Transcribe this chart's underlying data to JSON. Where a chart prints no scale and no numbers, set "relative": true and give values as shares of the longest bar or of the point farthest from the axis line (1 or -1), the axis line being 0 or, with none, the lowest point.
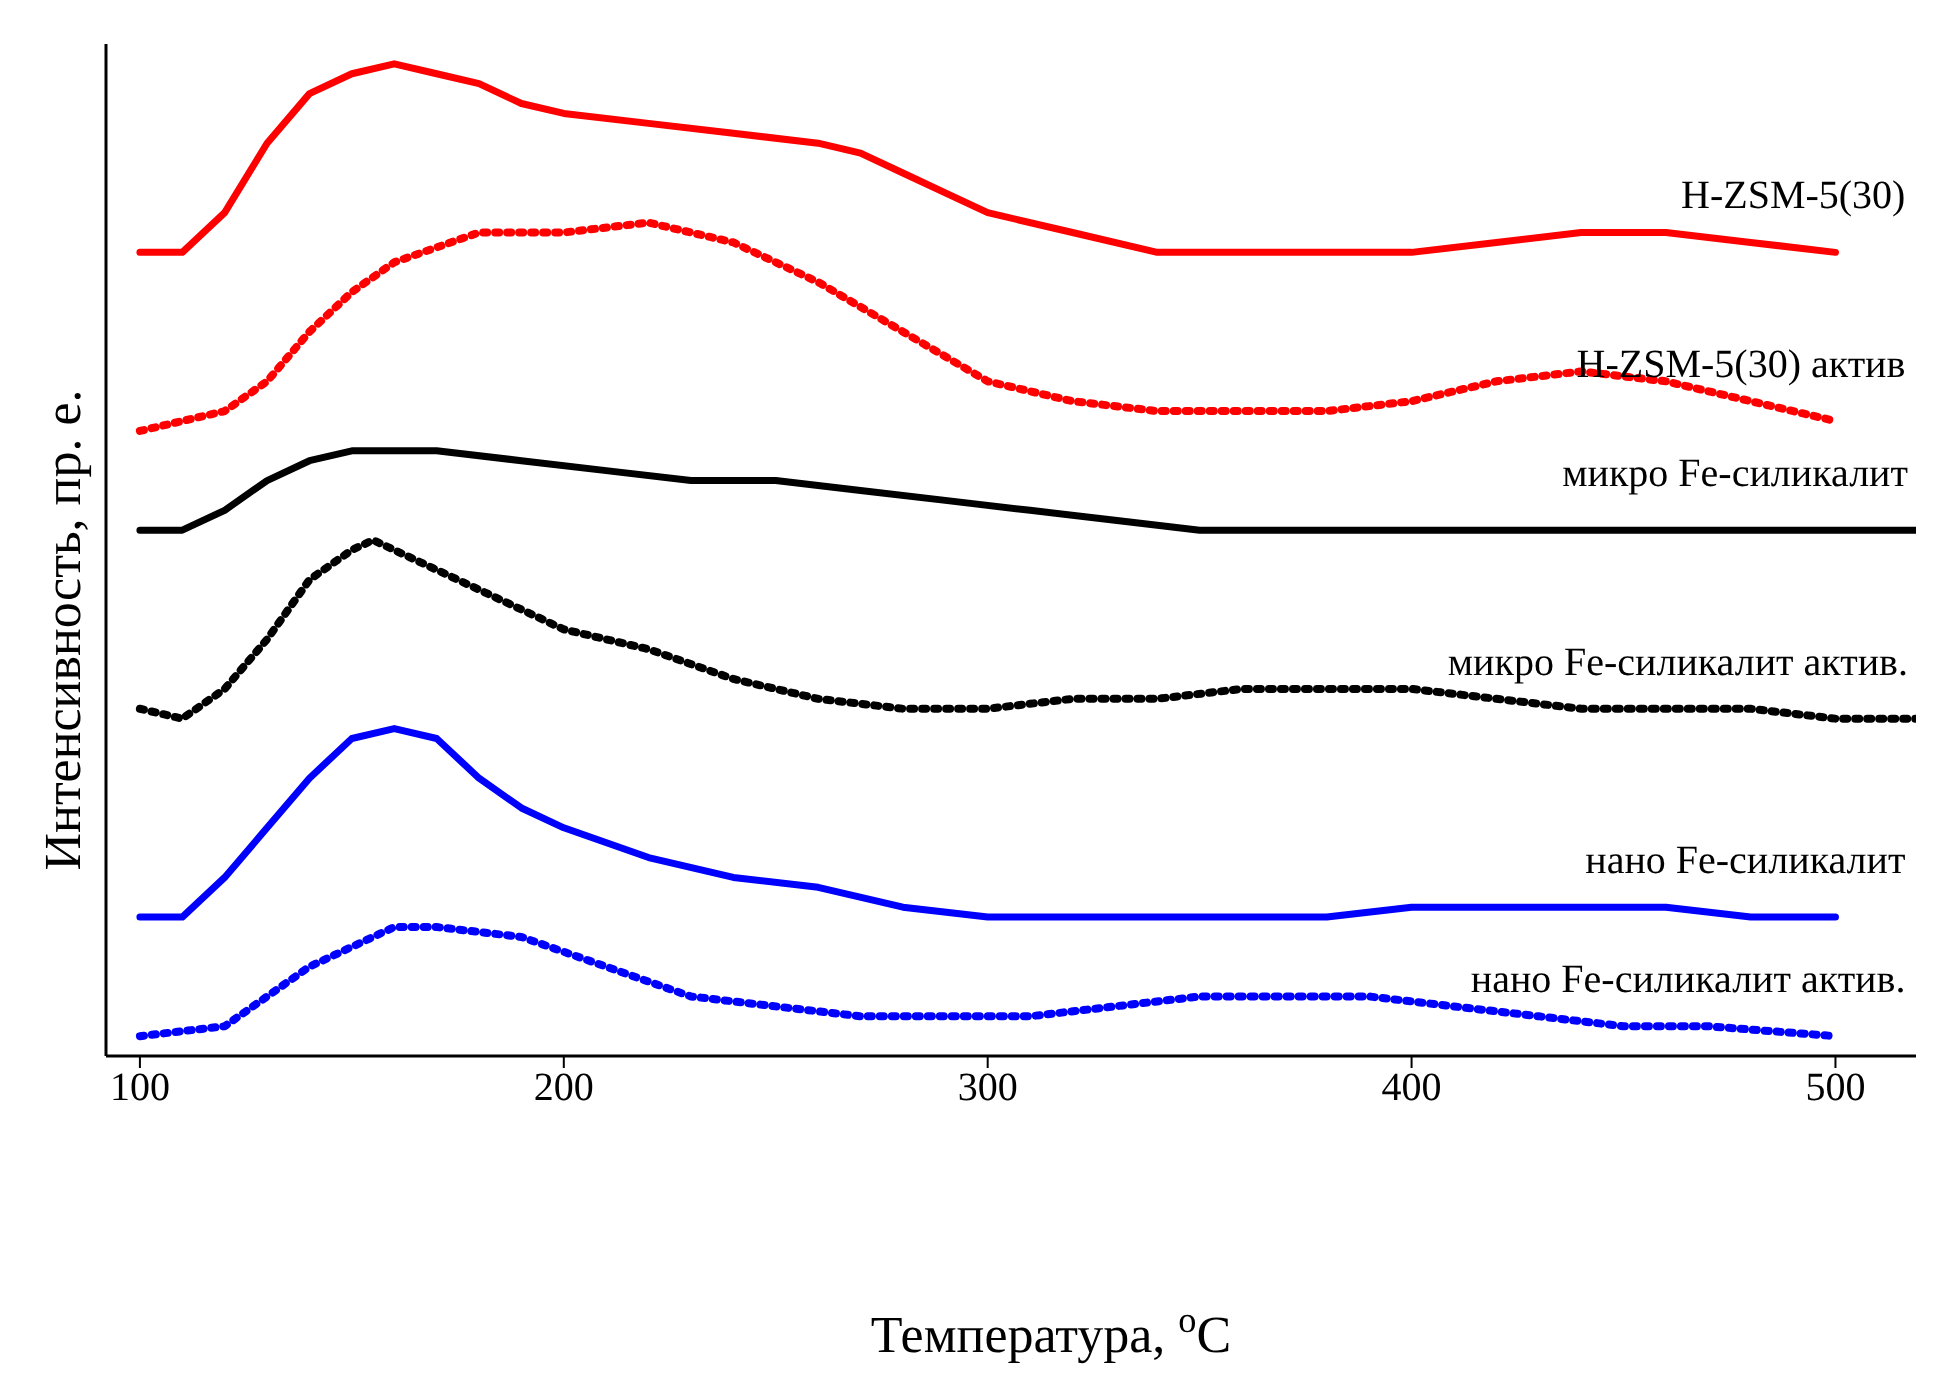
{
  "chart_data": {
    "type": "line",
    "relative": true,
    "xlabel": "Температура, $^{o}$C",
    "ylabel": "Интенсивность, пр. е.",
    "xlim": [
      92,
      519
    ],
    "xticks": [
      100,
      200,
      300,
      400,
      500
    ],
    "tick_labels": "x",
    "marker": "none",
    "series": [
      {
        "name": "H-ZSM-5(30)",
        "color": "#ff0000",
        "line_style": "solid",
        "x": [
          100,
          110,
          120,
          130,
          140,
          150,
          160,
          170,
          180,
          190,
          200,
          220,
          240,
          260,
          270,
          280,
          290,
          300,
          320,
          340,
          360,
          380,
          400,
          420,
          440,
          460,
          480,
          500
        ],
        "values": [
          0.81,
          0.81,
          0.85,
          0.92,
          0.97,
          0.99,
          1.0,
          0.99,
          0.98,
          0.96,
          0.95,
          0.94,
          0.93,
          0.92,
          0.91,
          0.89,
          0.87,
          0.85,
          0.83,
          0.81,
          0.81,
          0.81,
          0.81,
          0.82,
          0.83,
          0.83,
          0.82,
          0.81
        ]
      },
      {
        "name": "H-ZSM-5(30) актив",
        "color": "#ff0000",
        "line_style": "dotted",
        "x": [
          100,
          120,
          130,
          140,
          150,
          160,
          180,
          200,
          220,
          240,
          260,
          280,
          300,
          320,
          340,
          360,
          380,
          400,
          420,
          440,
          460,
          480,
          500
        ],
        "values": [
          0.63,
          0.65,
          0.68,
          0.73,
          0.77,
          0.8,
          0.83,
          0.83,
          0.84,
          0.82,
          0.78,
          0.73,
          0.68,
          0.66,
          0.65,
          0.65,
          0.65,
          0.66,
          0.68,
          0.69,
          0.68,
          0.66,
          0.64
        ]
      },
      {
        "name": "микро Fe-силикалит",
        "color": "#000000",
        "line_style": "solid",
        "x": [
          100,
          110,
          120,
          130,
          140,
          150,
          170,
          190,
          210,
          230,
          250,
          270,
          290,
          310,
          330,
          350,
          370,
          400,
          450,
          500,
          519
        ],
        "values": [
          0.53,
          0.53,
          0.55,
          0.58,
          0.6,
          0.61,
          0.61,
          0.6,
          0.59,
          0.58,
          0.58,
          0.57,
          0.56,
          0.55,
          0.54,
          0.53,
          0.53,
          0.53,
          0.53,
          0.53,
          0.53
        ]
      },
      {
        "name": "микро Fe-силикалит актив.",
        "color": "#000000",
        "line_style": "dotted",
        "x": [
          100,
          110,
          120,
          130,
          140,
          150,
          155,
          165,
          180,
          200,
          220,
          240,
          260,
          280,
          300,
          320,
          340,
          360,
          380,
          400,
          420,
          440,
          460,
          480,
          500,
          519
        ],
        "values": [
          0.35,
          0.34,
          0.37,
          0.42,
          0.48,
          0.51,
          0.52,
          0.5,
          0.47,
          0.43,
          0.41,
          0.38,
          0.36,
          0.35,
          0.35,
          0.36,
          0.36,
          0.37,
          0.37,
          0.37,
          0.36,
          0.35,
          0.35,
          0.35,
          0.34,
          0.34
        ]
      },
      {
        "name": "нано Fe-силикалит",
        "color": "#0000ff",
        "line_style": "solid",
        "x": [
          100,
          110,
          120,
          130,
          140,
          150,
          160,
          170,
          180,
          190,
          200,
          220,
          240,
          260,
          280,
          300,
          320,
          340,
          360,
          380,
          400,
          420,
          440,
          460,
          480,
          500
        ],
        "values": [
          0.14,
          0.14,
          0.18,
          0.23,
          0.28,
          0.32,
          0.33,
          0.32,
          0.28,
          0.25,
          0.23,
          0.2,
          0.18,
          0.17,
          0.15,
          0.14,
          0.14,
          0.14,
          0.14,
          0.14,
          0.15,
          0.15,
          0.15,
          0.15,
          0.14,
          0.14
        ]
      },
      {
        "name": "нано Fe-силикалит актив.",
        "color": "#0000ff",
        "line_style": "dotted",
        "x": [
          100,
          120,
          130,
          140,
          150,
          160,
          170,
          190,
          210,
          230,
          250,
          270,
          290,
          310,
          330,
          350,
          370,
          390,
          410,
          430,
          450,
          470,
          500
        ],
        "values": [
          0.02,
          0.03,
          0.06,
          0.09,
          0.11,
          0.13,
          0.13,
          0.12,
          0.09,
          0.06,
          0.05,
          0.04,
          0.04,
          0.04,
          0.05,
          0.06,
          0.06,
          0.06,
          0.05,
          0.04,
          0.03,
          0.03,
          0.02
        ]
      }
    ]
  }
}
